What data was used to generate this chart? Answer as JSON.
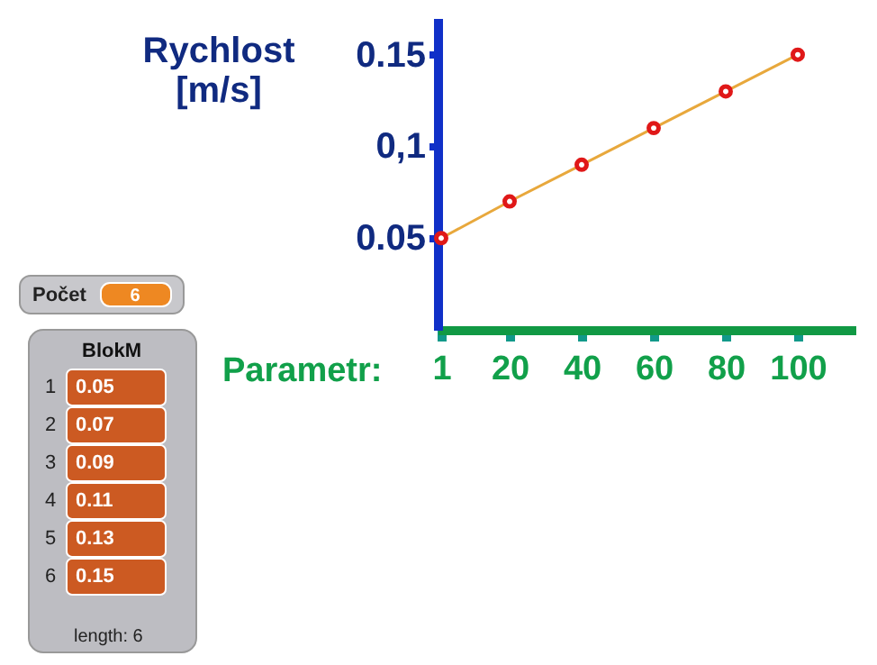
{
  "chart_data": {
    "type": "line",
    "xlabel": "Parametr:",
    "ylabel": "Rychlost [m/s]",
    "x": [
      1,
      20,
      40,
      60,
      80,
      100
    ],
    "series": [
      {
        "color": "#e8a83c",
        "values": [
          0.05,
          0.07,
          0.09,
          0.11,
          0.13,
          0.15
        ]
      }
    ],
    "xlim": [
      0,
      116
    ],
    "ylim": [
      0,
      0.17
    ],
    "xticks": [
      1,
      20,
      40,
      60,
      80,
      100
    ],
    "yticks": [
      0.05,
      {
        "value": 0.1,
        "label": "0,1"
      },
      0.15
    ],
    "marker": "circle",
    "grid": false,
    "annotations": [
      "Počet",
      "6",
      "BlokM",
      "length: 6",
      "1",
      "0.05",
      "2",
      "0.07",
      "3",
      "0.09",
      "4",
      "0.11",
      "5",
      "0.13",
      "6",
      "0.15"
    ]
  }
}
